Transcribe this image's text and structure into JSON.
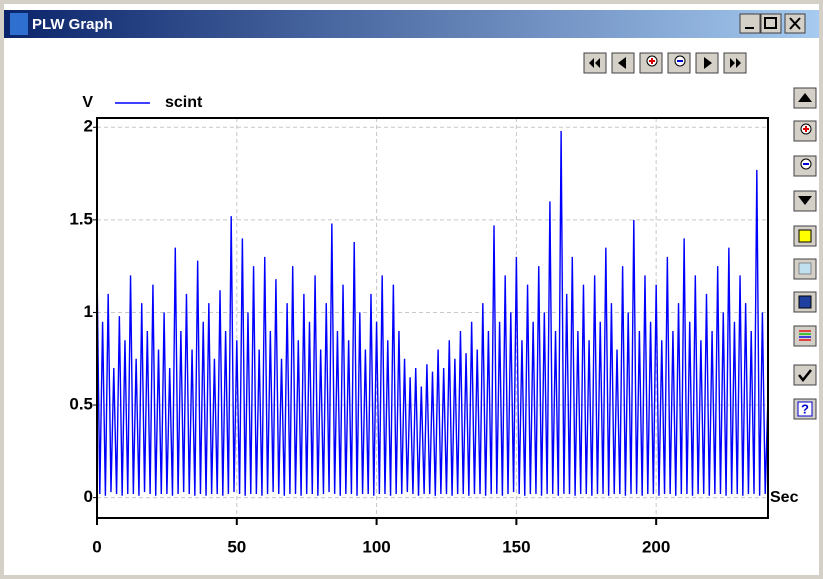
{
  "window": {
    "title": "PLW Graph"
  },
  "chart_data": {
    "type": "line",
    "y_label": "V",
    "x_label": "Sec",
    "x": [
      0,
      1,
      2,
      3,
      4,
      5,
      6,
      7,
      8,
      9,
      10,
      11,
      12,
      13,
      14,
      15,
      16,
      17,
      18,
      19,
      20,
      21,
      22,
      23,
      24,
      25,
      26,
      27,
      28,
      29,
      30,
      31,
      32,
      33,
      34,
      35,
      36,
      37,
      38,
      39,
      40,
      41,
      42,
      43,
      44,
      45,
      46,
      47,
      48,
      49,
      50,
      51,
      52,
      53,
      54,
      55,
      56,
      57,
      58,
      59,
      60,
      61,
      62,
      63,
      64,
      65,
      66,
      67,
      68,
      69,
      70,
      71,
      72,
      73,
      74,
      75,
      76,
      77,
      78,
      79,
      80,
      81,
      82,
      83,
      84,
      85,
      86,
      87,
      88,
      89,
      90,
      91,
      92,
      93,
      94,
      95,
      96,
      97,
      98,
      99,
      100,
      101,
      102,
      103,
      104,
      105,
      106,
      107,
      108,
      109,
      110,
      111,
      112,
      113,
      114,
      115,
      116,
      117,
      118,
      119,
      120,
      121,
      122,
      123,
      124,
      125,
      126,
      127,
      128,
      129,
      130,
      131,
      132,
      133,
      134,
      135,
      136,
      137,
      138,
      139,
      140,
      141,
      142,
      143,
      144,
      145,
      146,
      147,
      148,
      149,
      150,
      151,
      152,
      153,
      154,
      155,
      156,
      157,
      158,
      159,
      160,
      161,
      162,
      163,
      164,
      165,
      166,
      167,
      168,
      169,
      170,
      171,
      172,
      173,
      174,
      175,
      176,
      177,
      178,
      179,
      180,
      181,
      182,
      183,
      184,
      185,
      186,
      187,
      188,
      189,
      190,
      191,
      192,
      193,
      194,
      195,
      196,
      197,
      198,
      199,
      200,
      201,
      202,
      203,
      204,
      205,
      206,
      207,
      208,
      209,
      210,
      211,
      212,
      213,
      214,
      215,
      216,
      217,
      218,
      219,
      220,
      221,
      222,
      223,
      224,
      225,
      226,
      227,
      228,
      229,
      230,
      231,
      232,
      233,
      234,
      235,
      236,
      237,
      238,
      239,
      240
    ],
    "series": [
      {
        "name": "scint",
        "color": "#0000ff",
        "values": [
          1.25,
          0.02,
          0.95,
          0.01,
          1.1,
          0.03,
          0.7,
          0.02,
          0.98,
          0.01,
          0.85,
          0.02,
          1.2,
          0.02,
          0.75,
          0.01,
          1.05,
          0.03,
          0.9,
          0.02,
          1.15,
          0.01,
          0.8,
          0.02,
          1.0,
          0.02,
          0.7,
          0.01,
          1.35,
          0.02,
          0.9,
          0.03,
          1.1,
          0.02,
          0.8,
          0.01,
          1.28,
          0.02,
          0.95,
          0.01,
          1.05,
          0.02,
          0.75,
          0.02,
          1.12,
          0.01,
          0.9,
          0.02,
          1.52,
          0.03,
          0.85,
          0.02,
          1.4,
          0.01,
          1.0,
          0.02,
          1.25,
          0.02,
          0.8,
          0.01,
          1.3,
          0.02,
          0.9,
          0.03,
          1.18,
          0.02,
          0.75,
          0.01,
          1.05,
          0.02,
          1.25,
          0.02,
          0.85,
          0.01,
          1.1,
          0.02,
          0.95,
          0.02,
          1.2,
          0.01,
          0.8,
          0.02,
          1.05,
          0.03,
          1.48,
          0.02,
          0.9,
          0.01,
          1.15,
          0.02,
          0.85,
          0.02,
          1.38,
          0.01,
          1.0,
          0.02,
          0.8,
          0.02,
          1.1,
          0.01,
          0.95,
          0.02,
          1.2,
          0.02,
          0.85,
          0.01,
          1.15,
          0.02,
          0.9,
          0.02,
          0.75,
          0.03,
          0.65,
          0.02,
          0.7,
          0.01,
          0.6,
          0.02,
          0.72,
          0.02,
          0.68,
          0.01,
          0.8,
          0.02,
          0.7,
          0.02,
          0.85,
          0.01,
          0.75,
          0.02,
          0.9,
          0.02,
          0.78,
          0.01,
          0.95,
          0.02,
          0.8,
          0.02,
          1.05,
          0.01,
          0.9,
          0.02,
          1.47,
          0.02,
          0.95,
          0.01,
          1.2,
          0.02,
          1.0,
          0.03,
          1.3,
          0.02,
          0.85,
          0.01,
          1.15,
          0.02,
          0.95,
          0.02,
          1.25,
          0.01,
          1.0,
          0.02,
          1.6,
          0.02,
          0.9,
          0.01,
          1.98,
          0.02,
          1.1,
          0.02,
          1.3,
          0.01,
          0.9,
          0.02,
          1.15,
          0.02,
          0.85,
          0.01,
          1.2,
          0.02,
          0.95,
          0.02,
          1.35,
          0.01,
          1.05,
          0.02,
          0.8,
          0.02,
          1.25,
          0.01,
          1.0,
          0.02,
          1.5,
          0.02,
          0.9,
          0.01,
          1.2,
          0.02,
          0.95,
          0.02,
          1.15,
          0.01,
          0.85,
          0.02,
          1.3,
          0.02,
          0.9,
          0.01,
          1.05,
          0.02,
          1.4,
          0.02,
          0.95,
          0.01,
          1.2,
          0.02,
          0.85,
          0.02,
          1.1,
          0.01,
          0.9,
          0.02,
          1.25,
          0.02,
          1.0,
          0.01,
          1.35,
          0.02,
          0.95,
          0.02,
          1.2,
          0.01,
          1.05,
          0.02,
          0.9,
          0.02,
          1.77,
          0.01,
          1.0,
          0.02,
          0.55
        ]
      }
    ],
    "xlim": [
      0,
      240
    ],
    "ylim": [
      -0.11,
      2.05
    ],
    "xticks": [
      0,
      50,
      100,
      150,
      200
    ],
    "yticks": [
      0,
      0.5,
      1,
      1.5,
      2
    ],
    "grid": true
  }
}
